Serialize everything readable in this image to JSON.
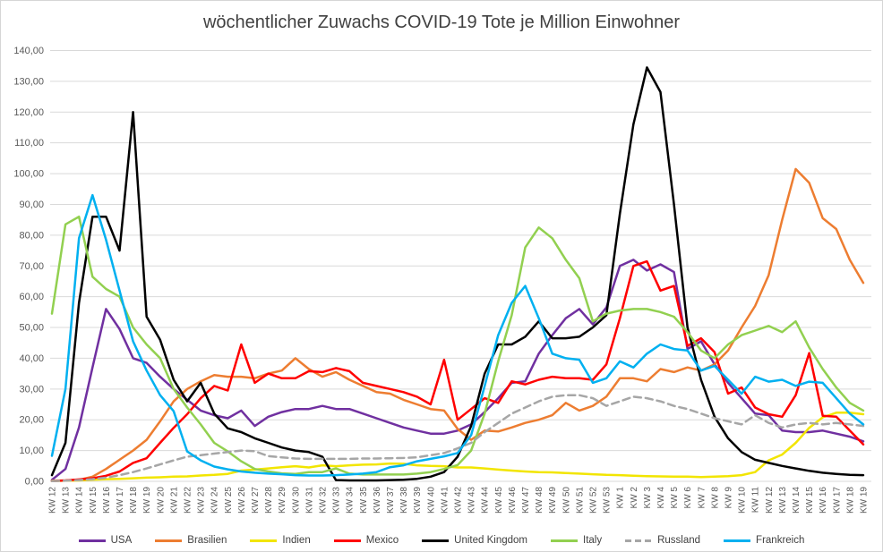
{
  "title": "wöchentlicher Zuwachs COVID-19 Tote je Million Einwohner",
  "chart_data": {
    "type": "line",
    "title": "wöchentlicher Zuwachs COVID-19 Tote je Million Einwohner",
    "xlabel": "",
    "ylabel": "",
    "grid": true,
    "legend_position": "bottom",
    "y_axis": {
      "min": 0,
      "max": 140,
      "step": 10,
      "tick_labels": [
        "0,00",
        "10,00",
        "20,00",
        "30,00",
        "40,00",
        "50,00",
        "60,00",
        "70,00",
        "80,00",
        "90,00",
        "100,00",
        "110,00",
        "120,00",
        "130,00",
        "140,00"
      ]
    },
    "categories": [
      "KW 12",
      "KW 13",
      "KW 14",
      "KW 15",
      "KW 16",
      "KW 17",
      "KW 18",
      "KW 19",
      "KW 20",
      "KW 21",
      "KW 22",
      "KW 23",
      "KW 24",
      "KW 25",
      "KW 26",
      "KW 27",
      "KW 28",
      "KW 29",
      "KW 30",
      "KW 31",
      "KW 32",
      "KW 33",
      "KW 34",
      "KW 35",
      "KW 36",
      "KW 37",
      "KW 38",
      "KW 39",
      "KW 40",
      "KW 41",
      "KW 42",
      "KW 43",
      "KW 44",
      "KW 45",
      "KW 46",
      "KW 47",
      "KW 48",
      "KW 49",
      "KW 50",
      "KW 51",
      "KW 52",
      "KW 53",
      "KW 1",
      "KW 2",
      "KW 3",
      "KW 4",
      "KW 5",
      "KW 6",
      "KW 7",
      "KW 8",
      "KW 9",
      "KW 10",
      "KW 11",
      "KW 12",
      "KW 13",
      "KW 14",
      "KW 15",
      "KW 16",
      "KW 17",
      "KW 18",
      "KW 19"
    ],
    "series": [
      {
        "name": "USA",
        "color": "#7030A0",
        "dash": null,
        "values": [
          0.5,
          4,
          17.5,
          37,
          56,
          49.5,
          40,
          38.5,
          34,
          30,
          26.5,
          23,
          21.5,
          20.5,
          23,
          18,
          21,
          22.5,
          23.5,
          23.5,
          24.5,
          23.5,
          23.5,
          22,
          20.5,
          19,
          17.5,
          16.5,
          15.5,
          15.5,
          16.5,
          18.5,
          22.5,
          27,
          32,
          32.5,
          41.5,
          47.5,
          53,
          56,
          51,
          56.5,
          70,
          72,
          68.5,
          70.5,
          68,
          43,
          45.5,
          38,
          32,
          27,
          22,
          21.5,
          16.5,
          16,
          16,
          16.5,
          15.5,
          14.5,
          13
        ]
      },
      {
        "name": "Brasilien",
        "color": "#ED7D31",
        "dash": null,
        "values": [
          0.2,
          0.3,
          0.5,
          1.5,
          4,
          7,
          10,
          13.5,
          19.5,
          26,
          30,
          32.5,
          34.5,
          34,
          34,
          33.5,
          35,
          36,
          40,
          36.5,
          34,
          35.5,
          33,
          31,
          29,
          28.5,
          26.5,
          25,
          23.5,
          23,
          17,
          13.5,
          16.5,
          16.2,
          17.5,
          19,
          20,
          21.5,
          25.5,
          23,
          24.5,
          27.5,
          33.5,
          33.5,
          32.5,
          36.5,
          35.5,
          37,
          36,
          38,
          42.5,
          50,
          57,
          67,
          85,
          101.5,
          97,
          85.5,
          82,
          72,
          64.5
        ]
      },
      {
        "name": "Indien",
        "color": "#F2E500",
        "dash": null,
        "values": [
          0.1,
          0.2,
          0.3,
          0.5,
          0.7,
          0.8,
          1,
          1.2,
          1.3,
          1.5,
          1.6,
          1.9,
          2.1,
          2.4,
          3.5,
          3.8,
          4.2,
          4.6,
          4.9,
          4.5,
          5.2,
          4.9,
          5.2,
          5.4,
          5.5,
          5.8,
          5.7,
          5.2,
          5,
          4.9,
          4.5,
          4.5,
          4.2,
          3.8,
          3.5,
          3.2,
          3,
          2.9,
          2.7,
          2.5,
          2.3,
          2.1,
          2,
          1.8,
          1.7,
          1.6,
          1.5,
          1.5,
          1.4,
          1.5,
          1.7,
          2,
          3,
          6.8,
          8.7,
          12.5,
          17.4,
          20.8,
          22.3,
          22.3,
          21.8
        ]
      },
      {
        "name": "Mexico",
        "color": "#FF0000",
        "dash": null,
        "values": [
          0.1,
          0.3,
          0.6,
          1,
          1.8,
          3.2,
          6,
          7.5,
          12.5,
          17.4,
          21.8,
          27,
          31,
          29.5,
          44.5,
          32,
          35,
          33.5,
          33.5,
          35.8,
          35.5,
          36.8,
          35.8,
          32,
          31,
          30,
          29,
          27.5,
          25,
          39.5,
          20,
          23.5,
          27,
          25.5,
          32.5,
          31.5,
          33,
          34,
          33.5,
          33.5,
          33,
          38,
          53,
          70,
          71.5,
          62,
          63.5,
          44,
          46.5,
          42,
          28.5,
          30.5,
          24,
          21.8,
          21,
          28,
          41.7,
          21.3,
          21,
          16.5,
          12
        ]
      },
      {
        "name": "United Kingdom",
        "color": "#000000",
        "dash": null,
        "values": [
          2,
          12.5,
          58,
          86,
          86,
          75,
          120,
          53.5,
          46,
          33,
          26,
          32,
          22,
          17.2,
          16,
          14,
          12.5,
          11,
          10,
          9.5,
          8,
          0.4,
          0.3,
          0.3,
          0.3,
          0.4,
          0.5,
          0.8,
          1.5,
          3,
          8,
          18,
          35,
          44.5,
          44.5,
          47,
          52,
          46.5,
          46.5,
          47,
          50,
          54,
          87,
          116,
          134.5,
          126.5,
          90,
          50,
          33,
          21,
          14,
          9.5,
          7,
          6,
          5,
          4.2,
          3.4,
          2.8,
          2.4,
          2.1,
          2
        ]
      },
      {
        "name": "Italy",
        "color": "#92D050",
        "dash": null,
        "values": [
          54.5,
          83.5,
          86,
          66.5,
          62.5,
          60,
          50,
          44.5,
          40,
          30,
          24,
          18.5,
          12.5,
          9.7,
          6.5,
          4,
          3.2,
          2.6,
          2.4,
          3,
          3,
          4.2,
          2.5,
          2.2,
          2.2,
          2.2,
          2.2,
          2.5,
          3,
          4,
          5.3,
          10,
          22,
          39,
          54,
          76,
          82.5,
          79,
          72,
          66,
          52,
          54.5,
          55.5,
          56,
          56,
          55,
          53.5,
          48.5,
          42.5,
          40,
          44.5,
          47.5,
          49,
          50.5,
          48.5,
          52,
          43.5,
          36.5,
          30.5,
          25.5,
          23
        ]
      },
      {
        "name": "Russland",
        "color": "#A6A6A6",
        "dash": "8 5",
        "values": [
          0.1,
          0.2,
          0.4,
          0.7,
          1.2,
          2,
          3,
          4.2,
          5.5,
          6.8,
          8,
          8.5,
          9,
          9.5,
          10,
          9.8,
          8.2,
          7.8,
          7.4,
          7.3,
          7.3,
          7.3,
          7.3,
          7.4,
          7.4,
          7.5,
          7.6,
          7.8,
          8.5,
          9.2,
          10.7,
          12.5,
          16,
          19,
          22,
          24,
          26,
          27.5,
          28,
          28,
          27,
          24.5,
          26,
          27.5,
          27,
          26,
          24.5,
          23.5,
          22,
          20.5,
          19.5,
          18.5,
          21.5,
          19,
          17.5,
          18.5,
          19,
          18.5,
          19,
          18.5,
          18
        ]
      },
      {
        "name": "Frankreich",
        "color": "#00B0F0",
        "dash": null,
        "values": [
          8.3,
          30,
          79,
          93,
          78.5,
          62,
          45.5,
          36,
          28,
          22.8,
          9.7,
          6.8,
          4.8,
          3.9,
          3.2,
          2.8,
          2.5,
          2.3,
          2,
          1.9,
          1.9,
          2,
          2.2,
          2.5,
          3,
          4.6,
          5.2,
          6.5,
          7.3,
          8.1,
          9.2,
          15,
          31,
          47.5,
          58,
          63.5,
          53,
          41.5,
          40,
          39.5,
          32,
          33.5,
          39,
          37,
          41.5,
          44.5,
          43,
          42.5,
          36,
          37.5,
          33,
          28.5,
          34,
          32.4,
          33,
          31,
          32.4,
          32,
          27,
          22,
          18.5
        ]
      }
    ]
  }
}
